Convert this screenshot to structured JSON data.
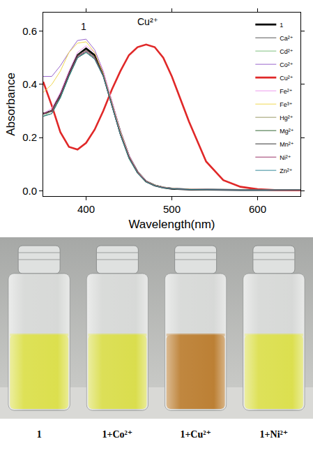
{
  "chart_data": {
    "type": "line",
    "x_label": "Wavelength(nm)",
    "y_label": "Absorbance",
    "x": [
      350,
      360,
      370,
      380,
      390,
      400,
      410,
      420,
      430,
      440,
      450,
      460,
      470,
      480,
      490,
      500,
      520,
      540,
      560,
      580,
      600,
      620,
      650
    ],
    "xlim": [
      350,
      650
    ],
    "xticks": [
      400,
      500,
      600
    ],
    "ylim": [
      -0.02,
      0.67
    ],
    "yticks": [
      {
        "value": 0,
        "label": "0.0"
      },
      0.2,
      0.4,
      0.6
    ],
    "grid": false,
    "legend": "top right",
    "series": [
      {
        "name": "1",
        "color": "#000000",
        "line_style": "bold",
        "values": [
          0.29,
          0.3,
          0.36,
          0.44,
          0.51,
          0.535,
          0.51,
          0.44,
          0.33,
          0.22,
          0.13,
          0.07,
          0.035,
          0.02,
          0.012,
          0.008,
          0.005,
          0.004,
          0.003,
          0.003,
          0.003,
          0.003,
          0.003
        ]
      },
      {
        "name": "Ca²⁺",
        "color": "#555555",
        "line_style": "solid",
        "values": [
          0.29,
          0.3,
          0.36,
          0.44,
          0.5,
          0.525,
          0.5,
          0.43,
          0.32,
          0.21,
          0.125,
          0.068,
          0.034,
          0.019,
          0.012,
          0.008,
          0.005,
          0.004,
          0.003,
          0.003,
          0.003,
          0.003,
          0.003
        ]
      },
      {
        "name": "Cd²⁺",
        "color": "#7fbf7f",
        "line_style": "solid",
        "values": [
          0.28,
          0.3,
          0.35,
          0.43,
          0.5,
          0.52,
          0.5,
          0.43,
          0.32,
          0.21,
          0.12,
          0.065,
          0.033,
          0.019,
          0.011,
          0.008,
          0.005,
          0.004,
          0.003,
          0.003,
          0.003,
          0.003,
          0.003
        ]
      },
      {
        "name": "Co²⁺",
        "color": "#9966cc",
        "line_style": "solid",
        "values": [
          0.43,
          0.43,
          0.47,
          0.52,
          0.565,
          0.57,
          0.53,
          0.45,
          0.33,
          0.22,
          0.13,
          0.07,
          0.036,
          0.021,
          0.013,
          0.009,
          0.006,
          0.005,
          0.004,
          0.004,
          0.003,
          0.003,
          0.003
        ]
      },
      {
        "name": "Cu²⁺",
        "color": "#e02828",
        "line_style": "bold",
        "values": [
          0.41,
          0.32,
          0.22,
          0.165,
          0.155,
          0.18,
          0.23,
          0.3,
          0.38,
          0.45,
          0.51,
          0.54,
          0.55,
          0.54,
          0.5,
          0.43,
          0.26,
          0.11,
          0.04,
          0.015,
          0.006,
          0.003,
          0.002
        ]
      },
      {
        "name": "Fe²⁺",
        "color": "#ee99ee",
        "line_style": "solid",
        "values": [
          0.29,
          0.31,
          0.37,
          0.45,
          0.52,
          0.545,
          0.52,
          0.45,
          0.34,
          0.225,
          0.135,
          0.072,
          0.037,
          0.021,
          0.013,
          0.009,
          0.006,
          0.005,
          0.004,
          0.003,
          0.003,
          0.003,
          0.003
        ]
      },
      {
        "name": "Fe³⁺",
        "color": "#f0d850",
        "line_style": "solid",
        "values": [
          0.37,
          0.4,
          0.45,
          0.52,
          0.555,
          0.56,
          0.52,
          0.44,
          0.33,
          0.22,
          0.13,
          0.07,
          0.036,
          0.021,
          0.013,
          0.009,
          0.006,
          0.005,
          0.004,
          0.004,
          0.003,
          0.003,
          0.003
        ]
      },
      {
        "name": "Hg²⁺",
        "color": "#999966",
        "line_style": "solid",
        "values": [
          0.29,
          0.3,
          0.36,
          0.44,
          0.51,
          0.53,
          0.505,
          0.435,
          0.325,
          0.215,
          0.128,
          0.069,
          0.035,
          0.02,
          0.012,
          0.008,
          0.005,
          0.004,
          0.003,
          0.003,
          0.003,
          0.003,
          0.003
        ]
      },
      {
        "name": "Mg²⁺",
        "color": "#336633",
        "line_style": "solid",
        "values": [
          0.28,
          0.29,
          0.35,
          0.43,
          0.5,
          0.52,
          0.495,
          0.43,
          0.32,
          0.21,
          0.122,
          0.066,
          0.033,
          0.019,
          0.011,
          0.008,
          0.005,
          0.004,
          0.003,
          0.003,
          0.003,
          0.003,
          0.003
        ]
      },
      {
        "name": "Mn²⁺",
        "color": "#333333",
        "line_style": "solid",
        "values": [
          0.29,
          0.3,
          0.36,
          0.44,
          0.51,
          0.53,
          0.505,
          0.435,
          0.325,
          0.215,
          0.128,
          0.069,
          0.035,
          0.02,
          0.012,
          0.008,
          0.005,
          0.004,
          0.003,
          0.003,
          0.003,
          0.003,
          0.003
        ]
      },
      {
        "name": "Ni²⁺",
        "color": "#993366",
        "line_style": "solid",
        "values": [
          0.29,
          0.3,
          0.36,
          0.44,
          0.505,
          0.525,
          0.5,
          0.43,
          0.32,
          0.21,
          0.125,
          0.068,
          0.034,
          0.019,
          0.012,
          0.008,
          0.005,
          0.004,
          0.003,
          0.003,
          0.003,
          0.003,
          0.003
        ]
      },
      {
        "name": "Zn²⁺",
        "color": "#338899",
        "line_style": "solid",
        "values": [
          0.28,
          0.29,
          0.35,
          0.43,
          0.5,
          0.52,
          0.495,
          0.43,
          0.32,
          0.21,
          0.122,
          0.066,
          0.033,
          0.019,
          0.011,
          0.008,
          0.005,
          0.004,
          0.003,
          0.003,
          0.003,
          0.003,
          0.003
        ]
      }
    ],
    "annotations": [
      {
        "text": "1",
        "x": 397,
        "y": 0.59
      },
      {
        "text": "Cu²⁺",
        "x": 472,
        "y": 0.61
      }
    ]
  },
  "photo": {
    "vials": [
      {
        "label": "1",
        "color": "#d8dc3a"
      },
      {
        "label": "1+Co²⁺",
        "color": "#d6da3a"
      },
      {
        "label": "1+Cu²⁺",
        "color": "#b5721e"
      },
      {
        "label": "1+Ni²⁺",
        "color": "#d8dc3c"
      }
    ]
  }
}
